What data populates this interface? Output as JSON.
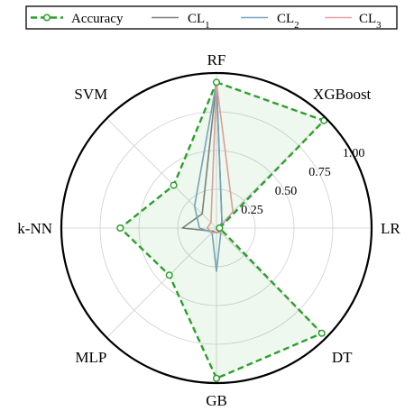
{
  "chart_data": {
    "type": "radar",
    "categories": [
      "RF",
      "XGBoost",
      "LR",
      "DT",
      "GB",
      "MLP",
      "k-NN",
      "SVM"
    ],
    "rlim": [
      0,
      1.0
    ],
    "rticks": [
      "0.25",
      "0.50",
      "0.75",
      "1.00"
    ],
    "rtick_values": [
      0.25,
      0.5,
      0.75,
      1.0
    ],
    "grid": true,
    "legend_position": "top",
    "series": [
      {
        "name": "Accuracy",
        "color": "#2ca02c",
        "style": "dashed-marker-fill",
        "values": [
          0.94,
          0.98,
          0.02,
          0.96,
          0.97,
          0.43,
          0.62,
          0.39
        ]
      },
      {
        "name": "CL1",
        "name_base": "CL",
        "name_sub": "1",
        "color": "#7f7f7f",
        "style": "solid",
        "values": [
          0.94,
          0.05,
          0.01,
          0.03,
          0.03,
          0.03,
          0.22,
          0.13
        ]
      },
      {
        "name": "CL2",
        "name_base": "CL",
        "name_sub": "2",
        "color": "#7ba3c6",
        "style": "solid",
        "values": [
          0.94,
          0.05,
          0.02,
          0.04,
          0.28,
          0.04,
          0.11,
          0.2
        ]
      },
      {
        "name": "CL3",
        "name_base": "CL",
        "name_sub": "3",
        "color": "#e8a0a6",
        "style": "solid",
        "values": [
          0.94,
          0.15,
          0.02,
          0.04,
          0.03,
          0.04,
          0.06,
          0.05
        ]
      }
    ]
  }
}
